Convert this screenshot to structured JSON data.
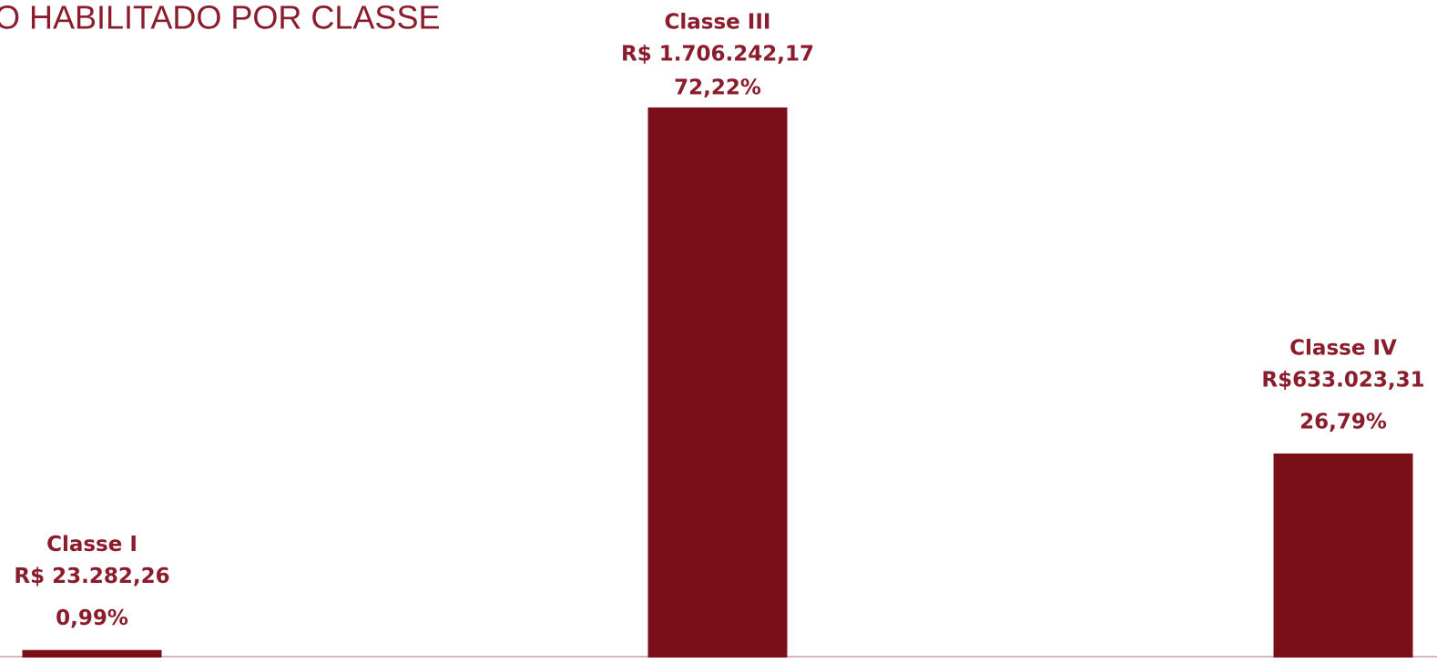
{
  "chart_data": {
    "type": "bar",
    "title": "O HABILITADO POR CLASSE",
    "categories": [
      "Classe I",
      "Classe III",
      "Classe IV"
    ],
    "values": [
      0.99,
      72.22,
      26.79
    ],
    "value_labels": [
      "0,99%",
      "72,22%",
      "26,79%"
    ],
    "amounts": [
      23282.26,
      1706242.17,
      633023.31
    ],
    "amount_labels": [
      "R$ 23.282,26",
      "R$ 1.706.242,17",
      "R$633.023,31"
    ],
    "color": "#7a0f1a"
  }
}
